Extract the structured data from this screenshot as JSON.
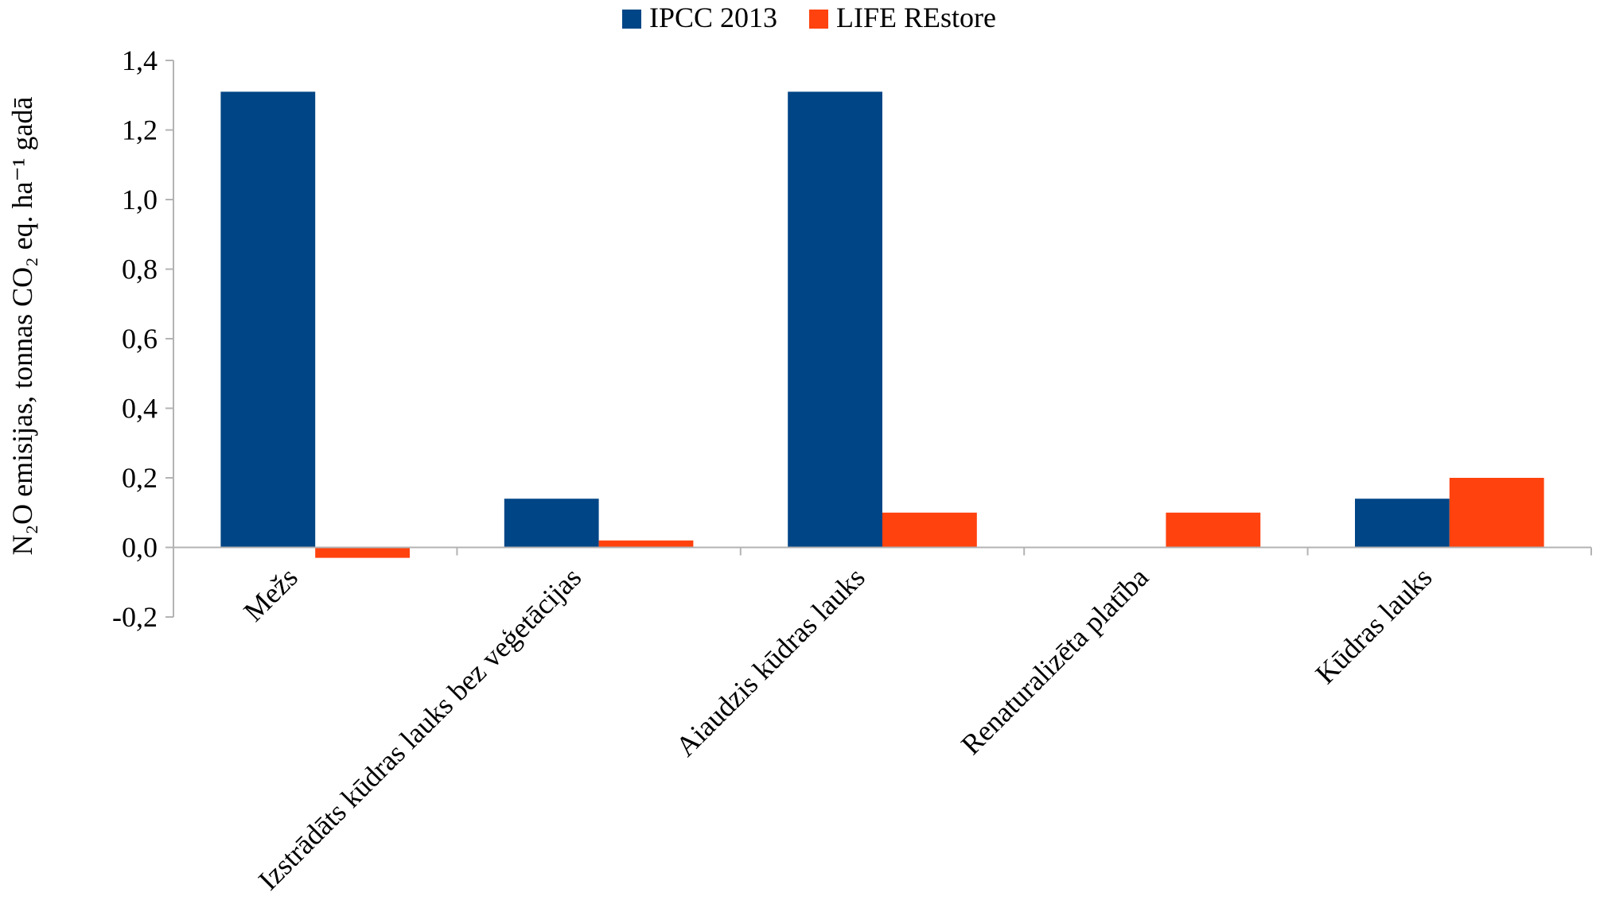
{
  "chart_data": {
    "type": "bar",
    "title": "",
    "xlabel": "",
    "ylabel": "N₂O emisijas, tonnas CO₂ eq. ha⁻¹ gadā",
    "ylim": [
      -0.2,
      1.4
    ],
    "yticks": [
      -0.2,
      0.0,
      0.2,
      0.4,
      0.6,
      0.8,
      1.0,
      1.2,
      1.4
    ],
    "ytick_labels": [
      "-0,2",
      "0,0",
      "0,2",
      "0,4",
      "0,6",
      "0,8",
      "1,0",
      "1,2",
      "1,4"
    ],
    "grid": false,
    "legend_position": "top-center",
    "categories": [
      "Mežs",
      "Izstrādāts kūdras lauks bez veģetācijas",
      "Aiaudzis kūdras lauks",
      "Renaturalizēta platība",
      "Kūdras lauks"
    ],
    "series": [
      {
        "name": "IPCC 2013",
        "color": "#004586",
        "values": [
          1.31,
          0.14,
          1.31,
          null,
          0.14
        ]
      },
      {
        "name": "LIFE REstore",
        "color": "#ff420e",
        "values": [
          -0.03,
          0.02,
          0.1,
          0.1,
          0.2
        ]
      }
    ]
  }
}
